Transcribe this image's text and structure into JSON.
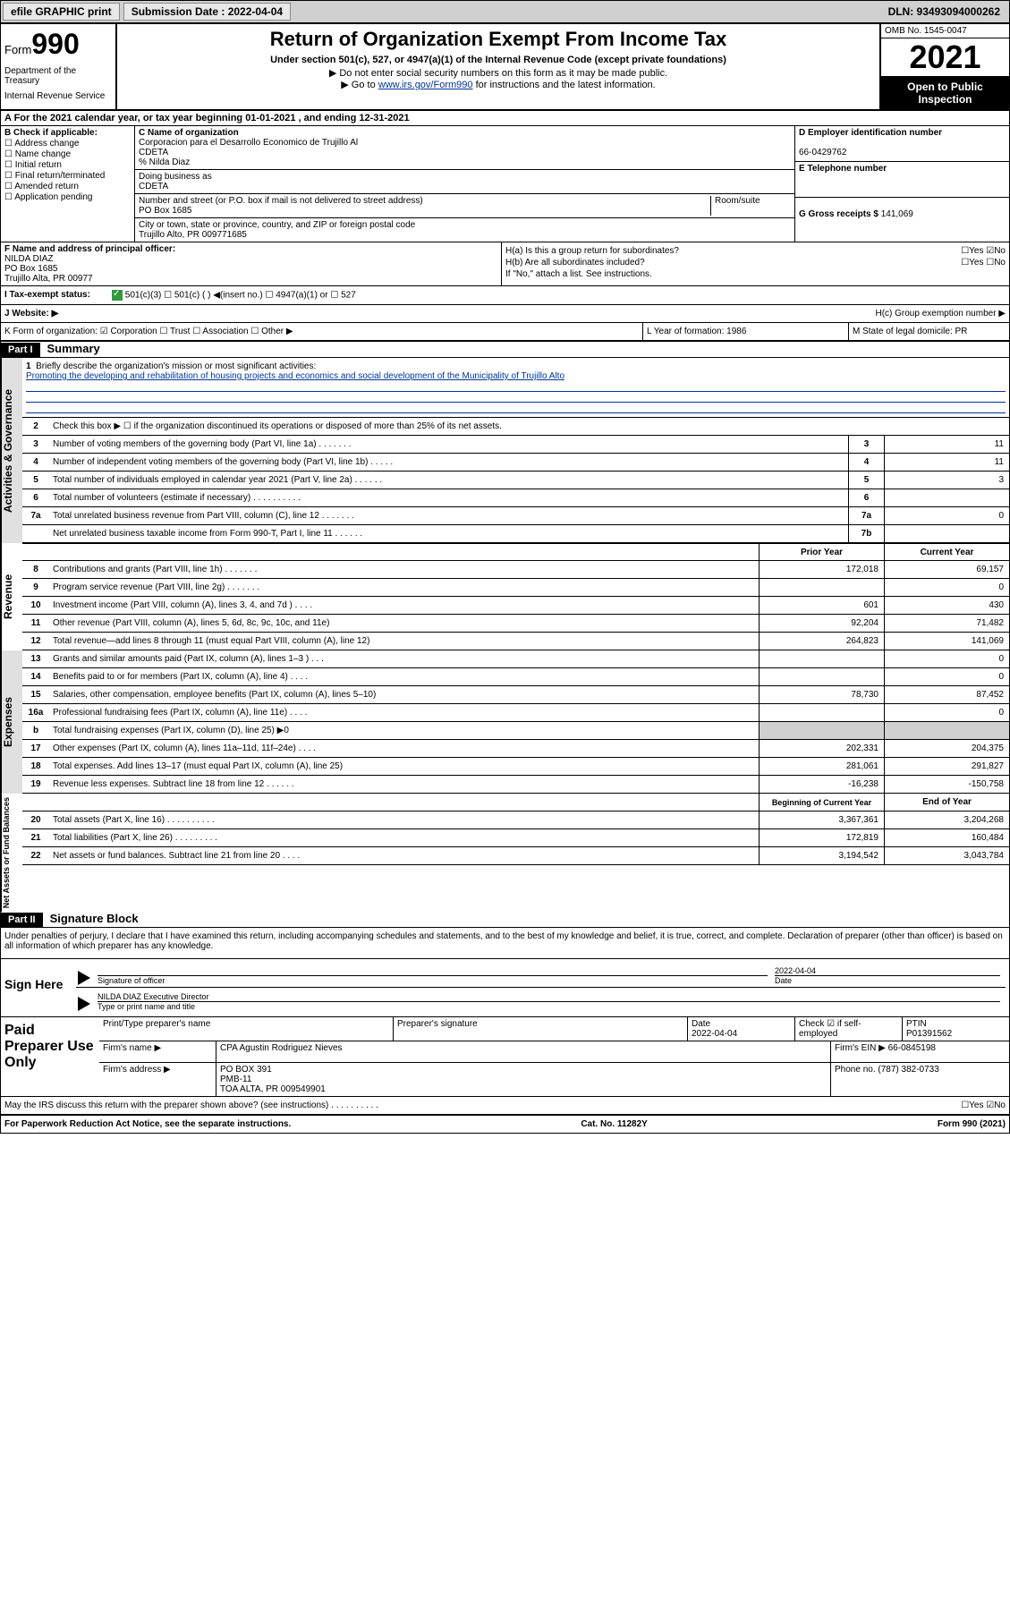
{
  "topbar": {
    "efile": "efile GRAPHIC print",
    "submission_label": "Submission Date : 2022-04-04",
    "dln": "DLN: 93493094000262"
  },
  "header": {
    "form_word": "Form",
    "form_num": "990",
    "dept": "Department of the Treasury",
    "irs": "Internal Revenue Service",
    "title": "Return of Organization Exempt From Income Tax",
    "sub1": "Under section 501(c), 527, or 4947(a)(1) of the Internal Revenue Code (except private foundations)",
    "sub2": "▶ Do not enter social security numbers on this form as it may be made public.",
    "sub3_pre": "▶ Go to ",
    "sub3_link": "www.irs.gov/Form990",
    "sub3_post": " for instructions and the latest information.",
    "omb": "OMB No. 1545-0047",
    "year": "2021",
    "open1": "Open to Public",
    "open2": "Inspection"
  },
  "row_a": "A For the 2021 calendar year, or tax year beginning 01-01-2021   , and ending 12-31-2021",
  "b": {
    "hdr": "B Check if applicable:",
    "opts": [
      "Address change",
      "Name change",
      "Initial return",
      "Final return/terminated",
      "Amended return",
      "Application pending"
    ]
  },
  "c": {
    "name_lbl": "C Name of organization",
    "name1": "Corporacion para el Desarrollo Economico de Trujillo Al",
    "name2": "CDETA",
    "care": "% Nilda Diaz",
    "dba_lbl": "Doing business as",
    "dba": "CDETA",
    "addr_lbl": "Number and street (or P.O. box if mail is not delivered to street address)",
    "room_lbl": "Room/suite",
    "addr": "PO Box 1685",
    "city_lbl": "City or town, state or province, country, and ZIP or foreign postal code",
    "city": "Trujillo Alto, PR  009771685"
  },
  "d": {
    "lbl": "D Employer identification number",
    "val": "66-0429762"
  },
  "e": {
    "lbl": "E Telephone number",
    "val": ""
  },
  "g": {
    "lbl": "G Gross receipts $",
    "val": "141,069"
  },
  "f": {
    "lbl": "F Name and address of principal officer:",
    "name": "NILDA DIAZ",
    "addr1": "PO Box 1685",
    "addr2": "Trujillo Alta, PR  00977"
  },
  "h": {
    "a": "H(a)  Is this a group return for subordinates?",
    "a_ans": "☐Yes  ☑No",
    "b": "H(b)  Are all subordinates included?",
    "b_ans": "☐Yes  ☐No",
    "b_note": "If \"No,\" attach a list. See instructions.",
    "c": "H(c)  Group exemption number ▶"
  },
  "i": {
    "lbl": "I    Tax-exempt status:",
    "text": "501(c)(3)    ☐   501(c) (  ) ◀(insert no.)     ☐  4947(a)(1) or   ☐  527"
  },
  "j": {
    "lbl": "J    Website: ▶"
  },
  "k": {
    "left": "K Form of organization:  ☑ Corporation ☐ Trust ☐ Association ☐ Other ▶",
    "mid": "L Year of formation: 1986",
    "right": "M State of legal domicile: PR"
  },
  "part1": {
    "tag": "Part I",
    "title": "Summary",
    "q1_lbl": "1",
    "q1": "Briefly describe the organization's mission or most significant activities:",
    "mission": "Promoting the developing and rehabilitation of housing projects and economics and social development of the Municipality of Trujillo Alto",
    "q2": "Check this box ▶ ☐  if the organization discontinued its operations or disposed of more than 25% of its net assets.",
    "rows_ag": [
      {
        "n": "3",
        "d": "Number of voting members of the governing body (Part VI, line 1a)   .    .    .    .    .    .    .",
        "box": "3",
        "v": "11"
      },
      {
        "n": "4",
        "d": "Number of independent voting members of the governing body (Part VI, line 1b)    .    .    .    .    .",
        "box": "4",
        "v": "11"
      },
      {
        "n": "5",
        "d": "Total number of individuals employed in calendar year 2021 (Part V, line 2a)   .    .    .    .    .    .",
        "box": "5",
        "v": "3"
      },
      {
        "n": "6",
        "d": "Total number of volunteers (estimate if necessary)    .    .    .    .    .    .    .    .    .    .",
        "box": "6",
        "v": ""
      },
      {
        "n": "7a",
        "d": "Total unrelated business revenue from Part VIII, column (C), line 12   .    .    .    .    .    .    .",
        "box": "7a",
        "v": "0"
      },
      {
        "n": "",
        "d": "Net unrelated business taxable income from Form 990-T, Part I, line 11   .    .    .    .    .    .",
        "box": "7b",
        "v": ""
      }
    ],
    "prior_hdr": "Prior Year",
    "curr_hdr": "Current Year",
    "rev": [
      {
        "n": "8",
        "d": "Contributions and grants (Part VIII, line 1h)    .    .    .    .    .    .    .",
        "p": "172,018",
        "c": "69,157"
      },
      {
        "n": "9",
        "d": "Program service revenue (Part VIII, line 2g)    .    .    .    .    .    .    .",
        "p": "",
        "c": "0"
      },
      {
        "n": "10",
        "d": "Investment income (Part VIII, column (A), lines 3, 4, and 7d )    .    .    .    .",
        "p": "601",
        "c": "430"
      },
      {
        "n": "11",
        "d": "Other revenue (Part VIII, column (A), lines 5, 6d, 8c, 9c, 10c, and 11e)",
        "p": "92,204",
        "c": "71,482"
      },
      {
        "n": "12",
        "d": "Total revenue—add lines 8 through 11 (must equal Part VIII, column (A), line 12)",
        "p": "264,823",
        "c": "141,069"
      }
    ],
    "exp": [
      {
        "n": "13",
        "d": "Grants and similar amounts paid (Part IX, column (A), lines 1–3 )    .    .    .",
        "p": "",
        "c": "0"
      },
      {
        "n": "14",
        "d": "Benefits paid to or for members (Part IX, column (A), line 4)    .    .    .    .",
        "p": "",
        "c": "0"
      },
      {
        "n": "15",
        "d": "Salaries, other compensation, employee benefits (Part IX, column (A), lines 5–10)",
        "p": "78,730",
        "c": "87,452"
      },
      {
        "n": "16a",
        "d": "Professional fundraising fees (Part IX, column (A), line 11e)    .    .    .    .",
        "p": "",
        "c": "0"
      },
      {
        "n": "b",
        "d": "Total fundraising expenses (Part IX, column (D), line 25) ▶0",
        "p": "GREY",
        "c": "GREY"
      },
      {
        "n": "17",
        "d": "Other expenses (Part IX, column (A), lines 11a–11d, 11f–24e)    .    .    .    .",
        "p": "202,331",
        "c": "204,375"
      },
      {
        "n": "18",
        "d": "Total expenses. Add lines 13–17 (must equal Part IX, column (A), line 25)",
        "p": "281,061",
        "c": "291,827"
      },
      {
        "n": "19",
        "d": "Revenue less expenses. Subtract line 18 from line 12   .    .    .    .    .    .",
        "p": "-16,238",
        "c": "-150,758"
      }
    ],
    "beg_hdr": "Beginning of Current Year",
    "end_hdr": "End of Year",
    "net": [
      {
        "n": "20",
        "d": "Total assets (Part X, line 16)   .    .    .    .    .    .    .    .    .    .",
        "p": "3,367,361",
        "c": "3,204,268"
      },
      {
        "n": "21",
        "d": "Total liabilities (Part X, line 26)   .    .    .    .    .    .    .    .    .",
        "p": "172,819",
        "c": "160,484"
      },
      {
        "n": "22",
        "d": "Net assets or fund balances. Subtract line 21 from line 20   .    .    .    .",
        "p": "3,194,542",
        "c": "3,043,784"
      }
    ],
    "side_ag": "Activities & Governance",
    "side_rev": "Revenue",
    "side_exp": "Expenses",
    "side_net": "Net Assets or Fund Balances"
  },
  "part2": {
    "tag": "Part II",
    "title": "Signature Block",
    "decl": "Under penalties of perjury, I declare that I have examined this return, including accompanying schedules and statements, and to the best of my knowledge and belief, it is true, correct, and complete. Declaration of preparer (other than officer) is based on all information of which preparer has any knowledge."
  },
  "sign": {
    "lbl": "Sign Here",
    "sig_lbl": "Signature of officer",
    "date_lbl": "Date",
    "date": "2022-04-04",
    "name": "NILDA DIAZ Executive Director",
    "name_lbl": "Type or print name and title"
  },
  "prep": {
    "lbl": "Paid Preparer Use Only",
    "r1": {
      "c1_lbl": "Print/Type preparer's name",
      "c1": "",
      "c2_lbl": "Preparer's signature",
      "c2": "",
      "c3_lbl": "Date",
      "c3": "2022-04-04",
      "c4_lbl": "Check ☑ if self-employed",
      "c5_lbl": "PTIN",
      "c5": "P01391562"
    },
    "r2": {
      "lbl": "Firm's name      ▶",
      "val": "CPA Agustin Rodriguez Nieves",
      "ein_lbl": "Firm's EIN ▶",
      "ein": "66-0845198"
    },
    "r3": {
      "lbl": "Firm's address ▶",
      "val1": "PO BOX 391",
      "val2": "PMB-11",
      "val3": "TOA ALTA, PR  009549901",
      "ph_lbl": "Phone no.",
      "ph": "(787) 382-0733"
    }
  },
  "discuss": {
    "q": "May the IRS discuss this return with the preparer shown above? (see instructions)    .    .    .    .    .    .    .    .    .    .",
    "a": "☐Yes  ☑No"
  },
  "footer": {
    "l": "For Paperwork Reduction Act Notice, see the separate instructions.",
    "m": "Cat. No. 11282Y",
    "r": "Form 990 (2021)"
  },
  "colors": {
    "link": "#003399",
    "check": "#2e9b3b",
    "grey": "#e0e0e0"
  }
}
